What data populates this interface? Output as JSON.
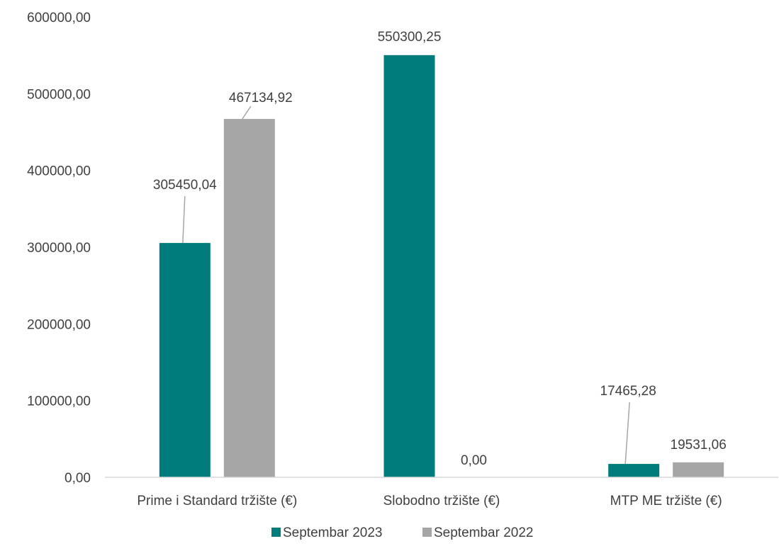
{
  "chart_data": {
    "type": "bar",
    "categories": [
      "Prime i Standard tržište (€)",
      "Slobodno tržište (€)",
      "MTP ME tržište (€)"
    ],
    "series": [
      {
        "name": "Septembar 2023",
        "values": [
          305450.04,
          550300.25,
          17465.28
        ],
        "labels": [
          "305450,04",
          "550300,25",
          "17465,28"
        ],
        "color": "#007c7c"
      },
      {
        "name": "Septembar 2022",
        "values": [
          467134.92,
          0.0,
          19531.06
        ],
        "labels": [
          "467134,92",
          "0,00",
          "19531,06"
        ],
        "color": "#a6a6a6"
      }
    ],
    "yticks": [
      "0,00",
      "100000,00",
      "200000,00",
      "300000,00",
      "400000,00",
      "500000,00",
      "600000,00"
    ],
    "ylim": [
      0,
      600000
    ],
    "grid": false,
    "legend": "bottom-center"
  }
}
